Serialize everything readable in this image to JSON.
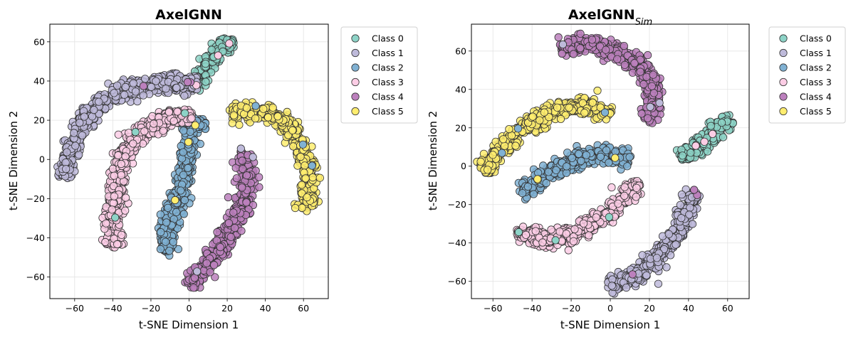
{
  "chart_data": [
    {
      "type": "scatter",
      "title": "AxelGNN",
      "title_subscript": "",
      "xlabel": "t-SNE Dimension 1",
      "ylabel": "t-SNE Dimension 2",
      "xlim": [
        -73,
        73
      ],
      "ylim": [
        -71,
        69
      ],
      "xticks": [
        -60,
        -40,
        -20,
        0,
        20,
        40,
        60
      ],
      "yticks": [
        -60,
        -40,
        -20,
        0,
        20,
        40,
        60
      ],
      "grid": true,
      "legend_position": "outside-right-top",
      "series": [
        {
          "name": "Class 0",
          "color": "#8dd3c7",
          "path": [
            [
              4,
              38
            ],
            [
              10,
              50
            ],
            [
              16,
              56
            ],
            [
              22,
              61
            ]
          ]
        },
        {
          "name": "Class 1",
          "color": "#bebada",
          "path": [
            [
              -66,
              -9
            ],
            [
              -62,
              3
            ],
            [
              -57,
              16
            ],
            [
              -50,
              26
            ],
            [
              -40,
              33
            ],
            [
              -25,
              38
            ],
            [
              -12,
              39
            ],
            [
              -2,
              38
            ],
            [
              5,
              38
            ]
          ]
        },
        {
          "name": "Class 2",
          "color": "#80b1d3",
          "path": [
            [
              -12,
              -47
            ],
            [
              -11,
              -35
            ],
            [
              -6,
              -20
            ],
            [
              -2,
              -5
            ],
            [
              0,
              8
            ],
            [
              1,
              18
            ],
            [
              8,
              18
            ]
          ]
        },
        {
          "name": "Class 3",
          "color": "#fccde5",
          "path": [
            [
              -40,
              -45
            ],
            [
              -40,
              -28
            ],
            [
              -38,
              -10
            ],
            [
              -33,
              5
            ],
            [
              -27,
              13
            ],
            [
              -18,
              18
            ],
            [
              -8,
              21
            ],
            [
              -2,
              22
            ],
            [
              2,
              22
            ]
          ]
        },
        {
          "name": "Class 4",
          "color": "#bc80bd",
          "path": [
            [
              0,
              -64
            ],
            [
              8,
              -56
            ],
            [
              16,
              -45
            ],
            [
              24,
              -33
            ],
            [
              30,
              -18
            ],
            [
              30,
              0
            ],
            [
              29,
              4
            ]
          ]
        },
        {
          "name": "Class 5",
          "color": "#ffed6f",
          "path": [
            [
              22,
              24
            ],
            [
              35,
              25
            ],
            [
              45,
              22
            ],
            [
              52,
              17
            ],
            [
              58,
              8
            ],
            [
              62,
              -3
            ],
            [
              63,
              -15
            ],
            [
              61,
              -26
            ]
          ]
        }
      ]
    },
    {
      "type": "scatter",
      "title": "AxelGNN",
      "title_subscript": "Sim",
      "xlabel": "t-SNE Dimension 1",
      "ylabel": "t-SNE Dimension 2",
      "xlim": [
        -71,
        71
      ],
      "ylim": [
        -69,
        74
      ],
      "xticks": [
        -60,
        -40,
        -20,
        0,
        20,
        40,
        60
      ],
      "yticks": [
        -60,
        -40,
        -20,
        0,
        20,
        40,
        60
      ],
      "grid": true,
      "legend_position": "outside-right-top",
      "series": [
        {
          "name": "Class 0",
          "color": "#8dd3c7",
          "path": [
            [
              35,
              3
            ],
            [
              45,
              10
            ],
            [
              53,
              17
            ],
            [
              60,
              25
            ]
          ]
        },
        {
          "name": "Class 1",
          "color": "#bebada",
          "path": [
            [
              -1,
              -62
            ],
            [
              12,
              -58
            ],
            [
              24,
              -48
            ],
            [
              33,
              -36
            ],
            [
              40,
              -22
            ],
            [
              43,
              -13
            ]
          ]
        },
        {
          "name": "Class 2",
          "color": "#80b1d3",
          "path": [
            [
              -45,
              -14
            ],
            [
              -38,
              -8
            ],
            [
              -28,
              -2
            ],
            [
              -18,
              3
            ],
            [
              -8,
              6
            ],
            [
              0,
              6
            ],
            [
              10,
              3
            ]
          ]
        },
        {
          "name": "Class 3",
          "color": "#fccde5",
          "path": [
            [
              -48,
              -35
            ],
            [
              -38,
              -37
            ],
            [
              -28,
              -38
            ],
            [
              -18,
              -35
            ],
            [
              -8,
              -30
            ],
            [
              0,
              -24
            ],
            [
              6,
              -18
            ],
            [
              12,
              -10
            ],
            [
              15,
              -8
            ]
          ]
        },
        {
          "name": "Class 4",
          "color": "#bc80bd",
          "path": [
            [
              -25,
              62
            ],
            [
              -14,
              64
            ],
            [
              -4,
              62
            ],
            [
              6,
              58
            ],
            [
              16,
              52
            ],
            [
              22,
              42
            ],
            [
              22,
              32
            ],
            [
              19,
              24
            ]
          ]
        },
        {
          "name": "Class 5",
          "color": "#ffed6f",
          "path": [
            [
              -65,
              -3
            ],
            [
              -58,
              8
            ],
            [
              -48,
              17
            ],
            [
              -38,
              24
            ],
            [
              -26,
              30
            ],
            [
              -12,
              31
            ],
            [
              0,
              28
            ]
          ]
        }
      ]
    }
  ]
}
